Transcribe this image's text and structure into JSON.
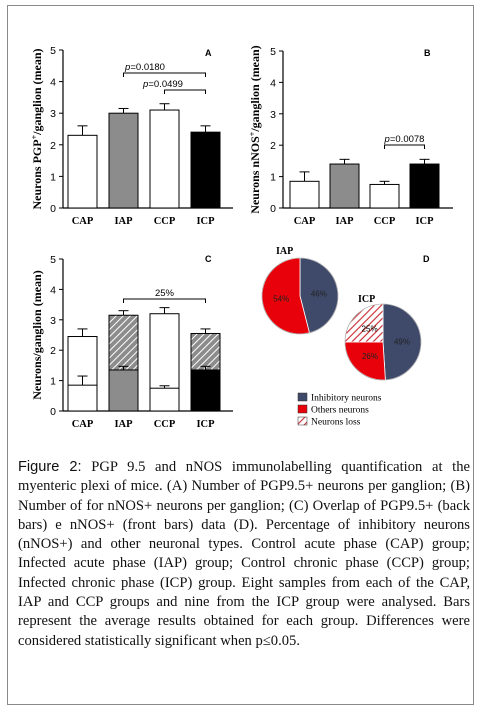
{
  "figure": {
    "label": "Figure 2:",
    "caption": "PGP 9.5 and nNOS immunolabelling quantification at the myenteric plexi of mice. (A) Number of PGP9.5+ neurons per ganglion; (B) Number of for nNOS+ neurons per ganglion; (C) Overlap of PGP9.5+ (back bars) e nNOS+ (front bars) data (D). Percentage of inhibitory neurons (nNOS+) and other neuronal types. Control acute phase (CAP) group; Infected acute phase (IAP) group; Control chronic phase (CCP) group; Infected chronic phase (ICP) group. Eight samples from each of the CAP, IAP and CCP groups and nine from the ICP group were analysed. Bars represent the average results obtained for each group. Differences were considered statistically significant when p≤0.05."
  },
  "chart_data": [
    {
      "panel": "A",
      "type": "bar",
      "ylabel": "Neurons PGP+/ganglion (mean)",
      "ylabel_main": "Neurons PGP",
      "ylabel_sup": "+",
      "ylabel_rest": "/ganglion (mean)",
      "categories": [
        "CAP",
        "IAP",
        "CCP",
        "ICP"
      ],
      "values": [
        2.3,
        3.0,
        3.1,
        2.4
      ],
      "errors": [
        0.3,
        0.15,
        0.2,
        0.2
      ],
      "fills": [
        "#ffffff",
        "#8c8c8c",
        "#ffffff",
        "#000000"
      ],
      "ylim": [
        0,
        5
      ],
      "yticks": [
        "0",
        "1",
        "2",
        "3",
        "4",
        "5"
      ],
      "annotations": [
        {
          "text": "p=0.0180",
          "from": "IAP",
          "to": "ICP"
        },
        {
          "text": "p=0.0499",
          "from": "CCP",
          "to": "ICP"
        }
      ]
    },
    {
      "panel": "B",
      "type": "bar",
      "ylabel": "Neurons nNOS+/ganglion (mean)",
      "ylabel_main": "Neurons nNOS",
      "ylabel_sup": "+",
      "ylabel_rest": "/ganglion (mean)",
      "categories": [
        "CAP",
        "IAP",
        "CCP",
        "ICP"
      ],
      "values": [
        0.85,
        1.4,
        0.75,
        1.4
      ],
      "errors": [
        0.3,
        0.15,
        0.1,
        0.15
      ],
      "fills": [
        "#ffffff",
        "#8c8c8c",
        "#ffffff",
        "#000000"
      ],
      "ylim": [
        0,
        5
      ],
      "yticks": [
        "0",
        "1",
        "2",
        "3",
        "4",
        "5"
      ],
      "annotations": [
        {
          "text": "p=0.0078",
          "from": "CCP",
          "to": "ICP"
        }
      ]
    },
    {
      "panel": "C",
      "type": "bar",
      "ylabel": "Neurons/ganglion (mean)",
      "categories": [
        "CAP",
        "IAP",
        "CCP",
        "ICP"
      ],
      "back_values": [
        2.45,
        3.15,
        3.2,
        2.55
      ],
      "back_errors": [
        0.25,
        0.15,
        0.2,
        0.15
      ],
      "front_values": [
        0.85,
        1.35,
        0.75,
        1.35
      ],
      "front_errors": [
        0.3,
        0.12,
        0.08,
        0.12
      ],
      "back_fills": [
        "#ffffff",
        "hatch",
        "#ffffff",
        "hatch"
      ],
      "front_fills": [
        "#ffffff",
        "#8c8c8c",
        "#ffffff",
        "#000000"
      ],
      "ylim": [
        0,
        5
      ],
      "yticks": [
        "0",
        "1",
        "2",
        "3",
        "4",
        "5"
      ],
      "annotations": [
        {
          "text": "25%",
          "from": "IAP",
          "to": "ICP"
        }
      ]
    },
    {
      "panel": "D",
      "type": "pie",
      "pies": [
        {
          "name": "IAP",
          "slices": [
            {
              "label": "Inhibitory neurons",
              "value": 46,
              "text": "46%",
              "color": "#3f4a6b"
            },
            {
              "label": "Others neurons",
              "value": 54,
              "text": "54%",
              "color": "#e8000b"
            }
          ]
        },
        {
          "name": "ICP",
          "slices": [
            {
              "label": "Inhibitory neurons",
              "value": 49,
              "text": "49%",
              "color": "#3f4a6b"
            },
            {
              "label": "Others neurons",
              "value": 26,
              "text": "26%",
              "color": "#e8000b"
            },
            {
              "label": "Neurons loss",
              "value": 25,
              "text": "25%",
              "color": "hatch-red"
            }
          ]
        }
      ],
      "legend": [
        {
          "label": "Inhibitory neurons",
          "color": "#3f4a6b"
        },
        {
          "label": "Others neurons",
          "color": "#e8000b"
        },
        {
          "label": "Neurons loss",
          "color": "hatch-red"
        }
      ]
    }
  ]
}
